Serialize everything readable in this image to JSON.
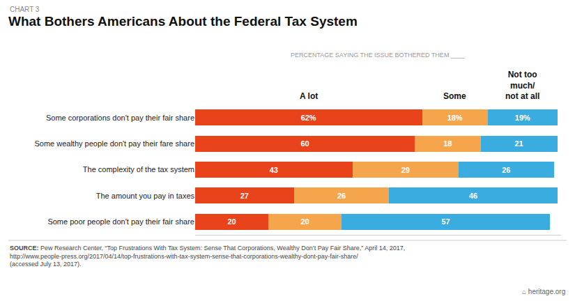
{
  "chart_data": {
    "type": "bar",
    "orientation": "horizontal",
    "stacked": true,
    "data_labels": true,
    "tick_labels": "y",
    "title": "What Bothers Americans About the Federal Tax System",
    "subtitle": "PERCENTAGE SAYING THE ISSUE BOTHERED THEM ____",
    "annotations": [
      "CHART 3",
      "SOURCE:",
      " Pew Research Center, “Top Frustrations With Tax System: Sense That Corporations, Wealthy Don’t Pay Fair Share,” April 14, 2017,\nhttp://www.people-press.org/2017/04/14/top-frustrations-with-tax-system-sense-that-corporations-wealthy-dont-pay-fair-share/\n(accessed July 13, 2017).",
      "⌂ heritage.org"
    ],
    "categories": [
      "Some corporations don't pay their fair share",
      "Some wealthy people don't pay their fare share",
      "The complexity of the tax system",
      "The amount you pay in taxes",
      "Some poor people don't pay their fair share"
    ],
    "xlim": [
      0,
      100
    ],
    "series": [
      {
        "name": "A lot",
        "color": "#E8431A",
        "values": [
          62,
          60,
          43,
          27,
          20
        ],
        "value_labels": [
          "62%",
          "60",
          "43",
          "27",
          "20"
        ]
      },
      {
        "name": "Some",
        "color": "#F5A64D",
        "values": [
          18,
          18,
          29,
          26,
          20
        ],
        "value_labels": [
          "18%",
          "18",
          "29",
          "26",
          "20"
        ]
      },
      {
        "name": "Not too\nmuch/\nnot at all",
        "color": "#3AACE0",
        "values": [
          19,
          21,
          26,
          46,
          57
        ],
        "value_labels": [
          "19%",
          "21",
          "26",
          "46",
          "57"
        ]
      }
    ]
  }
}
